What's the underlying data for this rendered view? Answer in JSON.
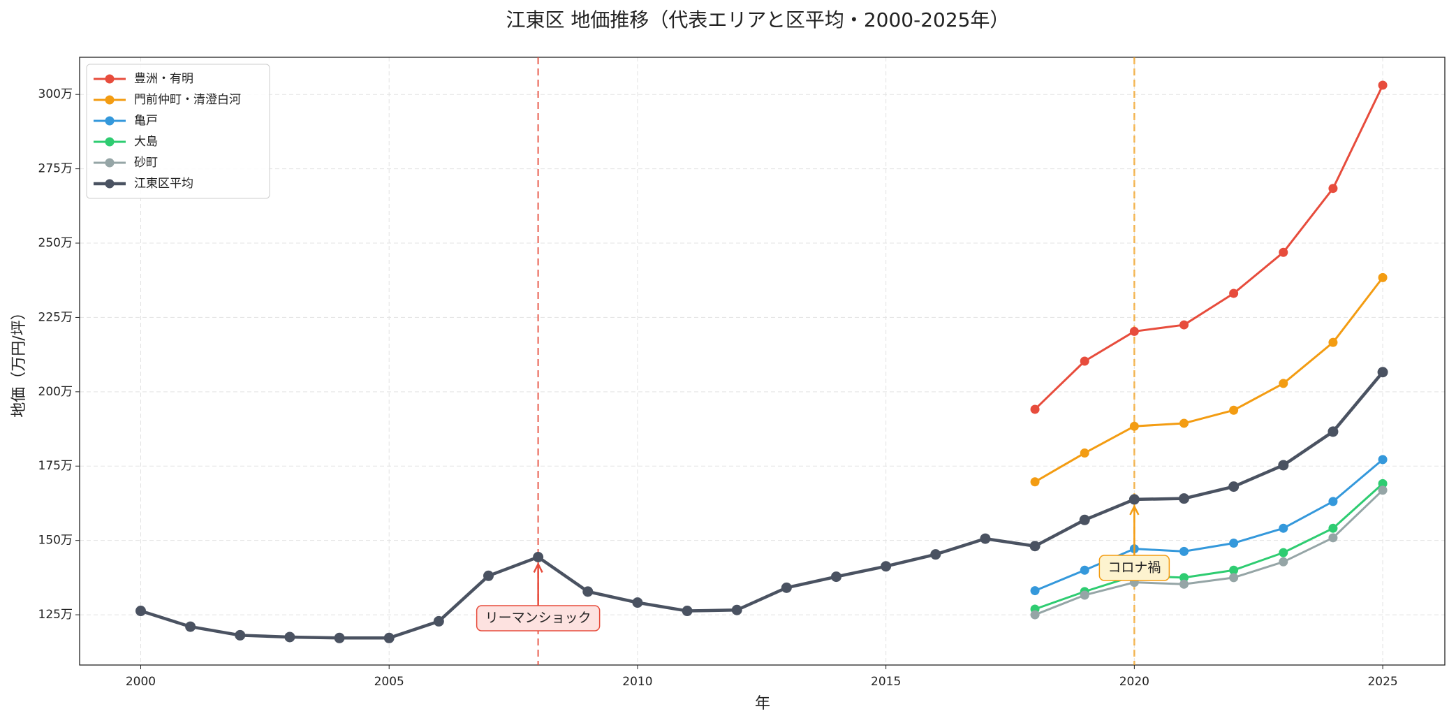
{
  "chart_data": {
    "type": "line",
    "title": "江東区 地価推移（代表エリアと区平均・2000-2025年）",
    "xlabel": "年",
    "ylabel": "地価（万円/坪）",
    "x": [
      2000,
      2001,
      2002,
      2003,
      2004,
      2005,
      2006,
      2007,
      2008,
      2009,
      2010,
      2011,
      2012,
      2013,
      2014,
      2015,
      2016,
      2017,
      2018,
      2019,
      2020,
      2021,
      2022,
      2023,
      2024,
      2025
    ],
    "series": [
      {
        "name": "豊洲・有明",
        "color": "#e74c3c",
        "linewidth": 3,
        "values": [
          null,
          null,
          null,
          null,
          null,
          null,
          null,
          null,
          null,
          null,
          null,
          null,
          null,
          null,
          null,
          null,
          null,
          null,
          194.1,
          210.3,
          220.3,
          222.5,
          233.1,
          246.9,
          268.4,
          303.1
        ]
      },
      {
        "name": "門前仲町・清澄白河",
        "color": "#f39c12",
        "linewidth": 3,
        "values": [
          null,
          null,
          null,
          null,
          null,
          null,
          null,
          null,
          null,
          null,
          null,
          null,
          null,
          null,
          null,
          null,
          null,
          null,
          169.7,
          179.4,
          188.4,
          189.4,
          193.8,
          202.8,
          216.6,
          238.4
        ]
      },
      {
        "name": "亀戸",
        "color": "#3498db",
        "linewidth": 3,
        "values": [
          null,
          null,
          null,
          null,
          null,
          null,
          null,
          null,
          null,
          null,
          null,
          null,
          null,
          null,
          null,
          null,
          null,
          null,
          133.1,
          140.0,
          147.2,
          146.3,
          149.1,
          154.1,
          163.1,
          177.2
        ]
      },
      {
        "name": "大島",
        "color": "#2ecc71",
        "linewidth": 3,
        "values": [
          null,
          null,
          null,
          null,
          null,
          null,
          null,
          null,
          null,
          null,
          null,
          null,
          null,
          null,
          null,
          null,
          null,
          null,
          126.9,
          132.8,
          138.1,
          137.5,
          140.0,
          145.9,
          154.1,
          169.1
        ]
      },
      {
        "name": "砂町",
        "color": "#95a5a6",
        "linewidth": 3,
        "values": [
          null,
          null,
          null,
          null,
          null,
          null,
          null,
          null,
          null,
          null,
          null,
          null,
          null,
          null,
          null,
          null,
          null,
          null,
          125.0,
          131.6,
          135.9,
          135.3,
          137.5,
          142.8,
          150.9,
          166.9
        ]
      },
      {
        "name": "江東区平均",
        "color": "#4a5261",
        "linewidth": 4.5,
        "values": [
          126.3,
          121.0,
          118.1,
          117.5,
          117.2,
          117.2,
          122.8,
          138.1,
          144.4,
          132.8,
          129.1,
          126.3,
          126.6,
          134.1,
          137.8,
          141.3,
          145.3,
          150.6,
          148.1,
          156.9,
          163.8,
          164.1,
          168.1,
          175.3,
          186.6,
          206.6
        ]
      }
    ],
    "annotations": [
      {
        "text": "リーマンショック",
        "x": 2008,
        "color": "#e74c3c"
      },
      {
        "text": "コロナ禍",
        "x": 2020,
        "color": "#f39c12"
      }
    ],
    "xlim": [
      1998.77,
      2026.25
    ],
    "xticks": [
      2000,
      2005,
      2010,
      2015,
      2020,
      2025
    ],
    "ylim": [
      108.1,
      312.5
    ],
    "yticks": [
      {
        "value": 125,
        "label": "125万"
      },
      {
        "value": 150,
        "label": "150万"
      },
      {
        "value": 175,
        "label": "175万"
      },
      {
        "value": 200,
        "label": "200万"
      },
      {
        "value": 225,
        "label": "225万"
      },
      {
        "value": 250,
        "label": "250万"
      },
      {
        "value": 275,
        "label": "275万"
      },
      {
        "value": 300,
        "label": "300万"
      }
    ],
    "grid": true,
    "legend": "upper left"
  }
}
